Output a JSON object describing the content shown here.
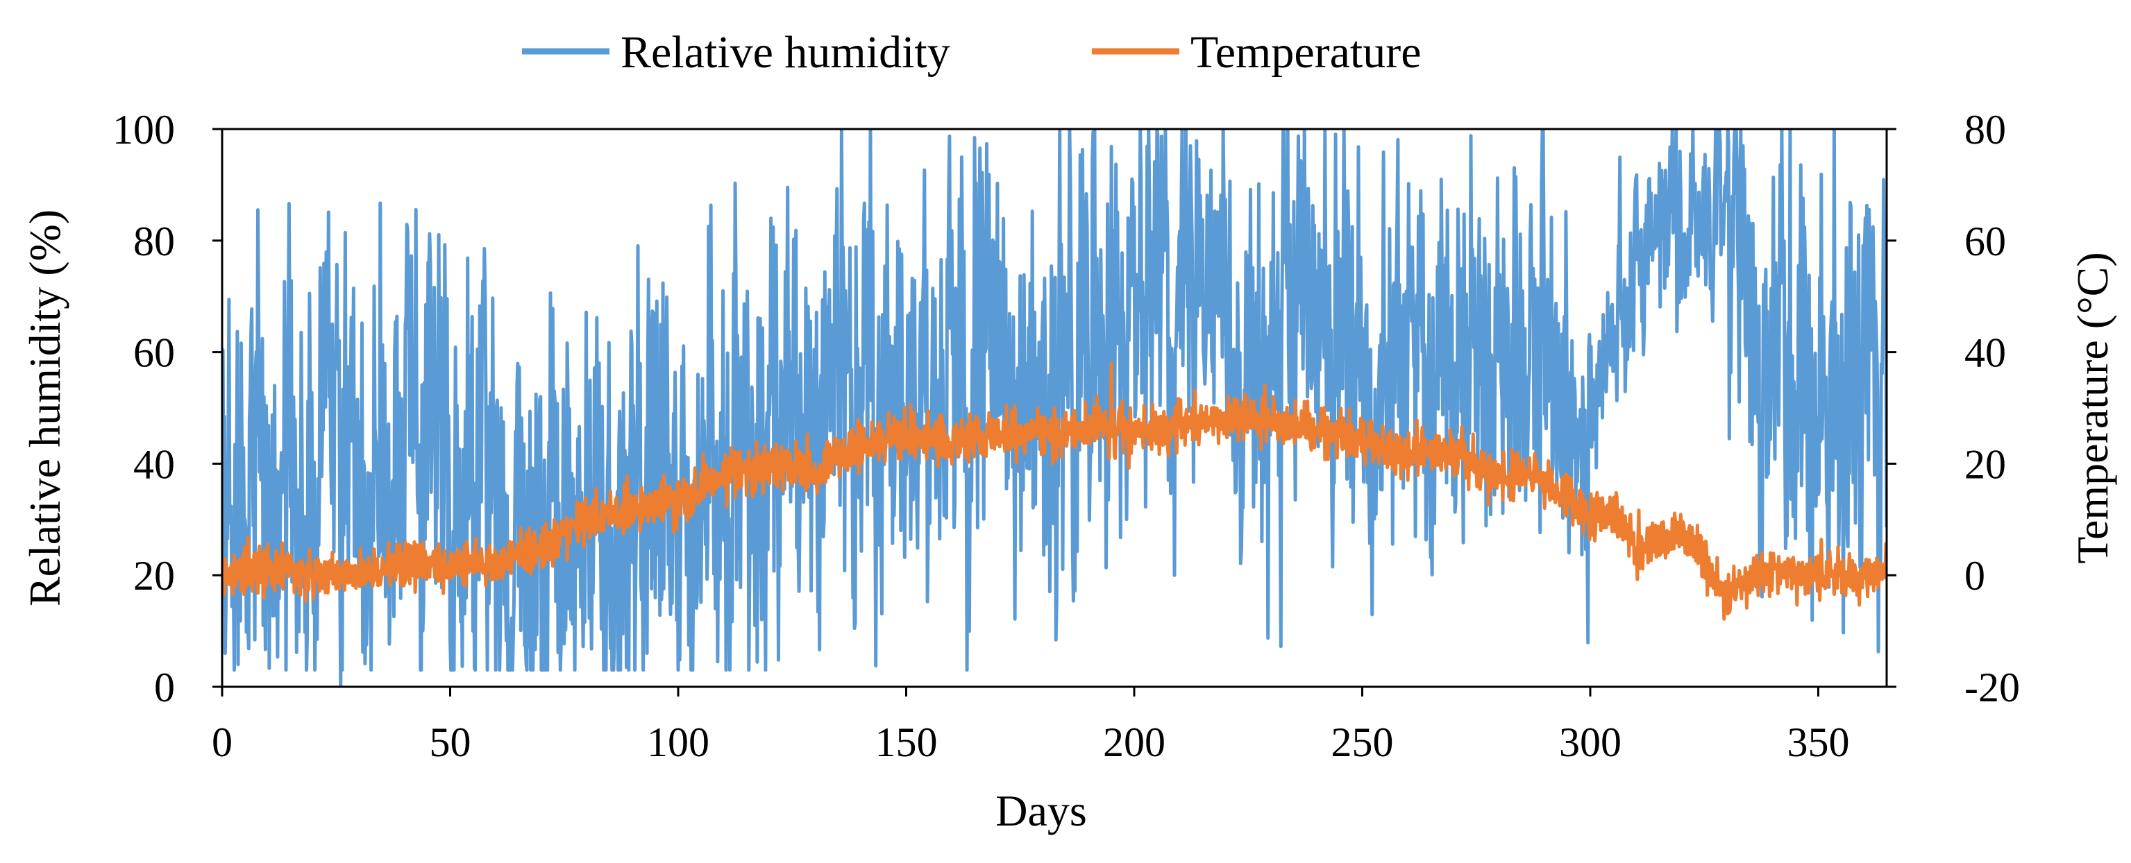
{
  "chart_data": {
    "type": "line",
    "title": "",
    "xlabel": "Days",
    "ylabel": "Relative humidity (%)",
    "y2label": "Temperature (°C)",
    "xlim": [
      0,
      365
    ],
    "ylim": [
      0,
      100
    ],
    "y2lim": [
      -20,
      80
    ],
    "grid": false,
    "legend_position": "top-center",
    "x_ticks": [
      0,
      50,
      100,
      150,
      200,
      250,
      300,
      350
    ],
    "x_tick_labels": [
      "0",
      "50",
      "100",
      "150",
      "200",
      "250",
      "300",
      "350"
    ],
    "y_ticks": [
      0,
      20,
      40,
      60,
      80,
      100
    ],
    "y_tick_labels": [
      "0",
      "20",
      "40",
      "60",
      "80",
      "100"
    ],
    "y2_ticks": [
      -20,
      0,
      20,
      40,
      60,
      80
    ],
    "y2_tick_labels": [
      "-20",
      "0",
      "20",
      "40",
      "60",
      "80"
    ],
    "sampling": "hourly (24 points per day), shown as daily summary below",
    "series": [
      {
        "name": "Relative humidity",
        "axis": "left",
        "color": "#5b9bd5",
        "daily_mean_x": [
          0,
          10,
          20,
          30,
          40,
          50,
          60,
          70,
          80,
          90,
          100,
          110,
          120,
          130,
          140,
          150,
          160,
          170,
          180,
          190,
          195,
          200,
          210,
          220,
          230,
          240,
          250,
          260,
          270,
          280,
          290,
          300,
          310,
          320,
          330,
          340,
          350,
          360,
          365
        ],
        "daily_mean_y": [
          35,
          40,
          38,
          36,
          35,
          42,
          30,
          32,
          30,
          35,
          38,
          36,
          45,
          50,
          52,
          50,
          52,
          55,
          55,
          55,
          70,
          75,
          72,
          68,
          62,
          65,
          60,
          58,
          60,
          55,
          55,
          45,
          80,
          85,
          80,
          50,
          50,
          55,
          50
        ],
        "min": 0,
        "max": 100
      },
      {
        "name": "Temperature",
        "axis": "right",
        "color": "#ed7d31",
        "daily_mean_x": [
          0,
          10,
          20,
          30,
          40,
          50,
          60,
          70,
          80,
          90,
          100,
          110,
          120,
          130,
          135,
          140,
          150,
          160,
          170,
          180,
          190,
          195,
          200,
          210,
          220,
          230,
          240,
          250,
          260,
          270,
          280,
          290,
          300,
          305,
          310,
          320,
          325,
          330,
          340,
          350,
          360,
          365
        ],
        "daily_mean_y": [
          0,
          1,
          0,
          0,
          2,
          2,
          2,
          5,
          10,
          12,
          13,
          18,
          20,
          18,
          22,
          23,
          25,
          24,
          25,
          25,
          27,
          26,
          26,
          27,
          28,
          28,
          26,
          24,
          22,
          22,
          18,
          18,
          10,
          12,
          5,
          8,
          3,
          -3,
          1,
          0,
          0,
          1
        ],
        "min": -9,
        "max": 38
      }
    ]
  }
}
